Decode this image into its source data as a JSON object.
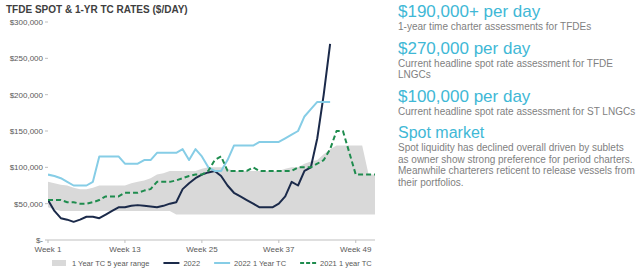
{
  "chart_data": {
    "type": "line",
    "title": "TFDE SPOT & 1-YR TC RATES ($/DAY)",
    "x": [
      1,
      2,
      3,
      4,
      5,
      6,
      7,
      8,
      9,
      10,
      11,
      12,
      13,
      14,
      15,
      16,
      17,
      18,
      19,
      20,
      21,
      22,
      23,
      24,
      25,
      26,
      27,
      28,
      29,
      30,
      31,
      32,
      33,
      34,
      35,
      36,
      37,
      38,
      39,
      40,
      41,
      42,
      43,
      44,
      45,
      46,
      47,
      48,
      49,
      50,
      51,
      52
    ],
    "xlim": [
      1,
      52
    ],
    "xticks": [
      {
        "value": 1,
        "label": "Week 1"
      },
      {
        "value": 13,
        "label": "Week 13"
      },
      {
        "value": 25,
        "label": "Week 25"
      },
      {
        "value": 37,
        "label": "Week 37"
      },
      {
        "value": 49,
        "label": "Week 49"
      }
    ],
    "ylim": [
      0,
      300000
    ],
    "yticks": [
      {
        "value": 0,
        "label": "$-"
      },
      {
        "value": 50000,
        "label": "$50,000"
      },
      {
        "value": 100000,
        "label": "$100,000"
      },
      {
        "value": 150000,
        "label": "$150,000"
      },
      {
        "value": 200000,
        "label": "$200,000"
      },
      {
        "value": 250000,
        "label": "$250,000"
      },
      {
        "value": 300000,
        "label": "$300,000"
      }
    ],
    "grid": false,
    "legend": "bottom",
    "series": [
      {
        "name": "1 Year TC 5 year range",
        "type": "range",
        "color": "#d9d9d9",
        "low": [
          45000,
          42000,
          40000,
          40000,
          40000,
          40000,
          40000,
          40000,
          40000,
          40000,
          40000,
          40000,
          40000,
          40000,
          40000,
          40000,
          40000,
          40000,
          40000,
          40000,
          35000,
          35000,
          35000,
          35000,
          35000,
          35000,
          35000,
          35000,
          35000,
          35000,
          35000,
          35000,
          35000,
          35000,
          35000,
          35000,
          35000,
          35000,
          35000,
          35000,
          35000,
          35000,
          35000,
          35000,
          35000,
          35000,
          35000,
          35000,
          35000,
          35000,
          35000,
          35000
        ],
        "high": [
          80000,
          78000,
          76000,
          75000,
          72000,
          70000,
          70000,
          72000,
          75000,
          75000,
          75000,
          75000,
          75000,
          78000,
          80000,
          82000,
          85000,
          90000,
          92000,
          95000,
          95000,
          95000,
          95000,
          95000,
          98000,
          100000,
          100000,
          100000,
          98000,
          95000,
          95000,
          95000,
          95000,
          95000,
          95000,
          95000,
          95000,
          98000,
          100000,
          100000,
          105000,
          108000,
          110000,
          118000,
          125000,
          130000,
          130000,
          130000,
          130000,
          130000,
          90000,
          90000
        ]
      },
      {
        "name": "2022",
        "type": "line",
        "color": "#1b2a4a",
        "line_style": "solid",
        "values": [
          55000,
          40000,
          30000,
          28000,
          25000,
          28000,
          32000,
          32000,
          30000,
          35000,
          40000,
          45000,
          45000,
          47000,
          48000,
          47000,
          46000,
          45000,
          47000,
          50000,
          52000,
          70000,
          78000,
          85000,
          90000,
          93000,
          95000,
          88000,
          75000,
          65000,
          60000,
          55000,
          50000,
          45000,
          45000,
          45000,
          50000,
          60000,
          80000,
          75000,
          95000,
          100000,
          140000,
          200000,
          270000,
          null,
          null,
          null,
          null,
          null,
          null,
          null
        ]
      },
      {
        "name": "2022 1 Year TC",
        "type": "line",
        "color": "#86cde6",
        "line_style": "solid",
        "values": [
          90000,
          88000,
          85000,
          80000,
          75000,
          75000,
          75000,
          80000,
          115000,
          115000,
          115000,
          115000,
          105000,
          105000,
          105000,
          110000,
          110000,
          120000,
          120000,
          120000,
          120000,
          125000,
          110000,
          125000,
          115000,
          100000,
          95000,
          95000,
          110000,
          130000,
          130000,
          130000,
          130000,
          135000,
          135000,
          135000,
          135000,
          140000,
          145000,
          150000,
          170000,
          180000,
          190000,
          190000,
          190000,
          null,
          null,
          null,
          null,
          null,
          null,
          null
        ]
      },
      {
        "name": "2021 1 year TC",
        "type": "line",
        "color": "#1e8c4e",
        "line_style": "dashed",
        "values": [
          55000,
          55000,
          55000,
          52000,
          52000,
          50000,
          50000,
          52000,
          55000,
          60000,
          60000,
          60000,
          65000,
          65000,
          65000,
          68000,
          70000,
          80000,
          80000,
          80000,
          82000,
          85000,
          88000,
          90000,
          90000,
          95000,
          110000,
          115000,
          95000,
          95000,
          95000,
          95000,
          100000,
          95000,
          95000,
          95000,
          95000,
          95000,
          95000,
          100000,
          100000,
          100000,
          105000,
          110000,
          125000,
          150000,
          150000,
          120000,
          90000,
          90000,
          90000,
          90000
        ]
      }
    ]
  },
  "side_panel": [
    {
      "headline": "$190,000+ per day",
      "text": "1-year time charter assessments for TFDEs"
    },
    {
      "headline": "$270,000 per day",
      "text": "Current headline spot rate assessment for TFDE LNGCs"
    },
    {
      "headline": "$100,000 per day",
      "text": "Current headline spot rate assessment for ST LNGCs"
    },
    {
      "headline": "Spot market",
      "text": "Spot liquidity has declined overall driven by sublets as owner show strong preference for period charters. Meanwhile charterers reticent to release vessels from their portfolios."
    }
  ]
}
